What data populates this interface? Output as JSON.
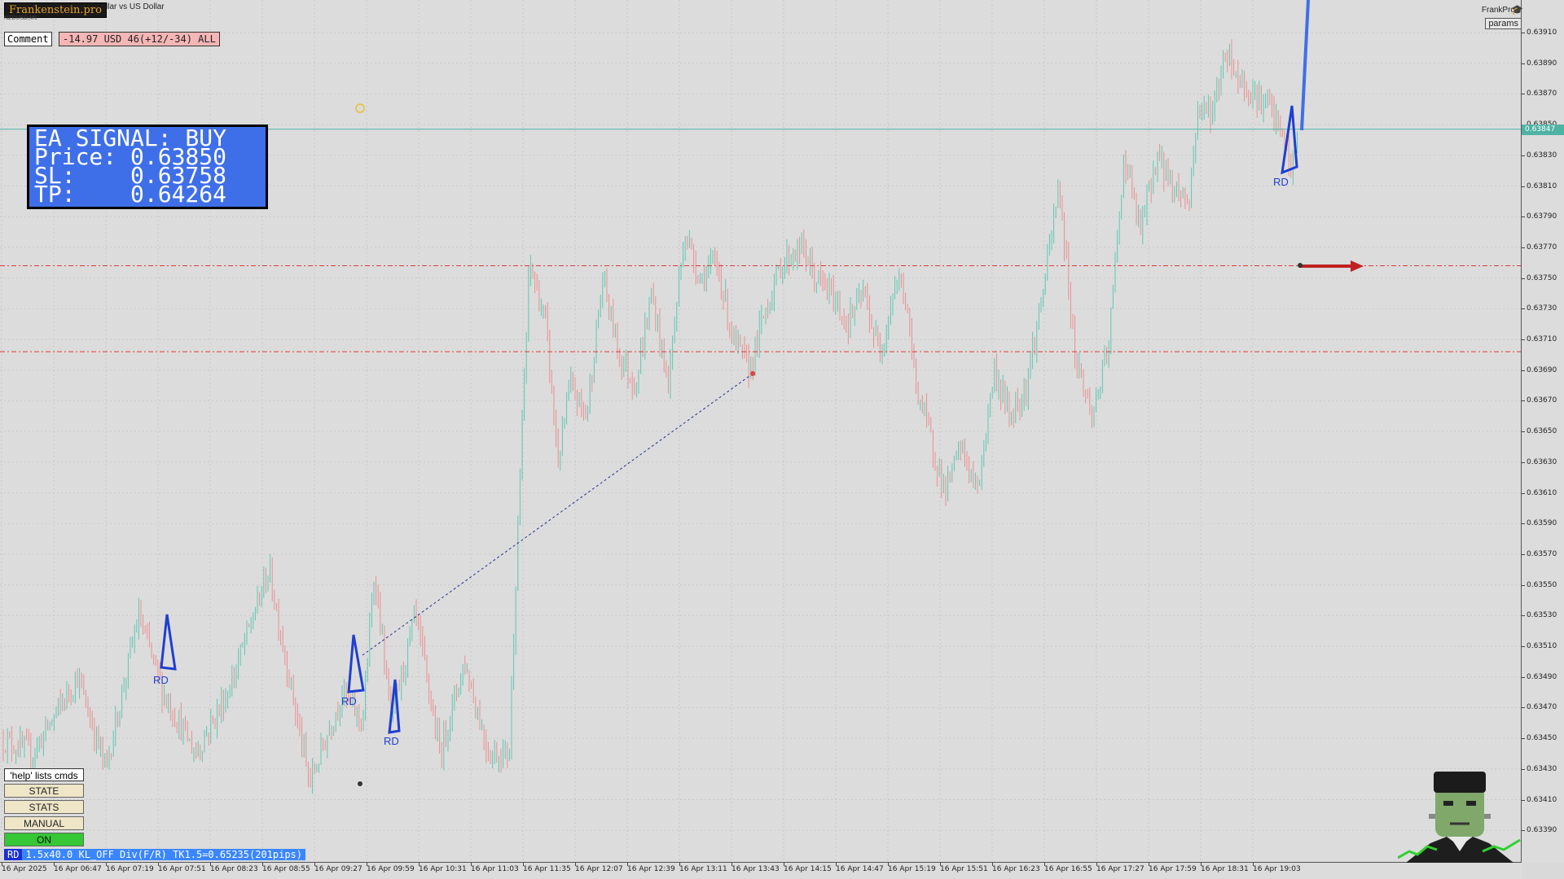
{
  "header": {
    "brand": "Frankenstein.pro",
    "symbol_title": "llar vs US Dollar",
    "sub_title": "NZDUSD,M1"
  },
  "comment": {
    "label": "Comment",
    "value": "-14.97 USD 46(+12/-34) ALL"
  },
  "signal": {
    "line1": "EA SIGNAL: BUY",
    "line2": "Price: 0.63850",
    "line3": "SL:    0.63758",
    "line4": "TP:    0.64264"
  },
  "top_right": {
    "brand": "FrankPro",
    "brand_icon": "graduation-cap-icon",
    "params_label": "params"
  },
  "price_axis": {
    "ticks": [
      "0.63910",
      "0.63890",
      "0.63870",
      "0.63850",
      "0.63830",
      "0.63810",
      "0.63790",
      "0.63770",
      "0.63750",
      "0.63730",
      "0.63710",
      "0.63690",
      "0.63670",
      "0.63650",
      "0.63630",
      "0.63610",
      "0.63590",
      "0.63570",
      "0.63550",
      "0.63530",
      "0.63510",
      "0.63490",
      "0.63470",
      "0.63450",
      "0.63430",
      "0.63410",
      "0.63390"
    ],
    "current": "0.63847"
  },
  "time_axis": {
    "ticks": [
      "16 Apr 2025",
      "16 Apr 06:47",
      "16 Apr 07:19",
      "16 Apr 07:51",
      "16 Apr 08:23",
      "16 Apr 08:55",
      "16 Apr 09:27",
      "16 Apr 09:59",
      "16 Apr 10:31",
      "16 Apr 11:03",
      "16 Apr 11:35",
      "16 Apr 12:07",
      "16 Apr 12:39",
      "16 Apr 13:11",
      "16 Apr 13:43",
      "16 Apr 14:15",
      "16 Apr 14:47",
      "16 Apr 15:19",
      "16 Apr 15:51",
      "16 Apr 16:23",
      "16 Apr 16:55",
      "16 Apr 17:27",
      "16 Apr 17:59",
      "16 Apr 18:31",
      "16 Apr 19:03"
    ]
  },
  "levels": {
    "current_price": 0.63847,
    "sl_line": 0.63758,
    "lower_red_line": 0.63702
  },
  "patterns": {
    "label": "RD"
  },
  "side_panel": {
    "help": "'help' lists cmds",
    "state": "STATE",
    "stats": "STATS",
    "manual": "MANUAL",
    "on": "ON"
  },
  "status": {
    "tag": "RD",
    "text": "1.5x40.0 KL_OFF Div(F/R) TK1.5=0.65235(201pips)"
  },
  "colors": {
    "bull": "#5fc7b2",
    "bear": "#ec8f8f",
    "level_red": "#e03a3a",
    "current_line": "#4fb3a4",
    "pattern_blue": "#1f3fd0"
  }
}
